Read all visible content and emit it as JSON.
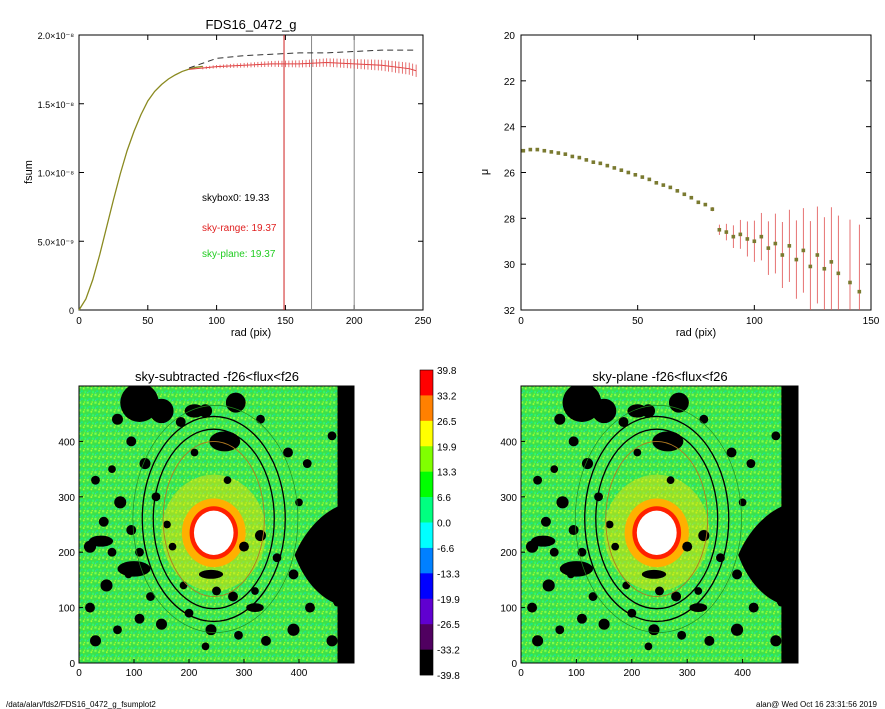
{
  "chart_data": [
    {
      "type": "line",
      "title": "FDS16_0472_g",
      "xlabel": "rad (pix)",
      "ylabel": "fsum",
      "xlim": [
        0,
        250
      ],
      "ylim": [
        0,
        2e-08
      ],
      "xticks": [
        "0",
        "50",
        "100",
        "150",
        "200",
        "250"
      ],
      "yticks": [
        "0",
        "5.0×10⁻⁹",
        "1.0×10⁻⁸",
        "1.5×10⁻⁸",
        "2.0×10⁻⁸"
      ],
      "ytick_values": [
        0,
        5e-09,
        1e-08,
        1.5e-08,
        2e-08
      ],
      "series": [
        {
          "style": "solid-olive",
          "x": [
            0,
            5,
            10,
            15,
            20,
            25,
            30,
            35,
            40,
            45,
            50,
            55,
            60,
            65,
            70,
            75,
            80,
            85,
            90
          ],
          "y": [
            0,
            8e-10,
            2.2e-09,
            4e-09,
            6e-09,
            8e-09,
            9.9e-09,
            1.16e-08,
            1.3e-08,
            1.42e-08,
            1.52e-08,
            1.59e-08,
            1.64e-08,
            1.68e-08,
            1.71e-08,
            1.735e-08,
            1.752e-08,
            1.765e-08,
            1.772e-08
          ]
        },
        {
          "style": "dashed-black",
          "x": [
            80,
            100,
            120,
            140,
            160,
            180,
            200,
            220,
            240,
            245
          ],
          "y": [
            1.76e-08,
            1.83e-08,
            1.85e-08,
            1.86e-08,
            1.87e-08,
            1.87e-08,
            1.88e-08,
            1.89e-08,
            1.89e-08,
            1.89e-08
          ]
        },
        {
          "style": "red-errorbars",
          "x": [
            80,
            100,
            120,
            140,
            160,
            180,
            200,
            220,
            240,
            245
          ],
          "y": [
            1.75e-08,
            1.77e-08,
            1.78e-08,
            1.79e-08,
            1.79e-08,
            1.8e-08,
            1.79e-08,
            1.78e-08,
            1.755e-08,
            1.74e-08
          ]
        }
      ],
      "vlines": [
        {
          "x": 149,
          "color": "#d02020"
        },
        {
          "x": 169,
          "color": "#888888"
        },
        {
          "x": 200,
          "color": "#888888"
        }
      ],
      "annotations": [
        {
          "text": "skybox0: 19.33",
          "color": "#000000"
        },
        {
          "text": "sky-range: 19.37",
          "color": "#e02020"
        },
        {
          "text": "sky-plane: 19.37",
          "color": "#22cc22"
        }
      ]
    },
    {
      "type": "scatter",
      "title": "",
      "xlabel": "rad (pix)",
      "ylabel": "μ",
      "xlim": [
        0,
        150
      ],
      "ylim": [
        32,
        20
      ],
      "xticks": [
        "0",
        "50",
        "100",
        "150"
      ],
      "yticks": [
        "20",
        "22",
        "24",
        "26",
        "28",
        "30",
        "32"
      ],
      "points": [
        [
          1,
          25.05
        ],
        [
          4,
          25.0
        ],
        [
          7,
          25.0
        ],
        [
          10,
          25.05
        ],
        [
          13,
          25.1
        ],
        [
          16,
          25.15
        ],
        [
          19,
          25.2
        ],
        [
          22,
          25.3
        ],
        [
          25,
          25.35
        ],
        [
          28,
          25.45
        ],
        [
          31,
          25.55
        ],
        [
          34,
          25.6
        ],
        [
          37,
          25.7
        ],
        [
          40,
          25.8
        ],
        [
          43,
          25.9
        ],
        [
          46,
          26.0
        ],
        [
          49,
          26.1
        ],
        [
          52,
          26.2
        ],
        [
          55,
          26.3
        ],
        [
          58,
          26.45
        ],
        [
          61,
          26.55
        ],
        [
          64,
          26.65
        ],
        [
          67,
          26.8
        ],
        [
          70,
          26.95
        ],
        [
          73,
          27.1
        ],
        [
          76,
          27.3
        ],
        [
          79,
          27.4
        ],
        [
          82,
          27.6
        ],
        [
          85,
          28.5
        ],
        [
          88,
          28.6
        ],
        [
          91,
          28.8
        ],
        [
          94,
          28.7
        ],
        [
          97,
          28.9
        ],
        [
          100,
          29.0
        ],
        [
          103,
          28.8
        ],
        [
          106,
          29.3
        ],
        [
          109,
          29.1
        ],
        [
          112,
          29.6
        ],
        [
          115,
          29.2
        ],
        [
          118,
          29.8
        ],
        [
          121,
          29.4
        ],
        [
          124,
          30.1
        ],
        [
          127,
          29.6
        ],
        [
          130,
          30.2
        ],
        [
          133,
          29.9
        ],
        [
          136,
          30.4
        ],
        [
          141,
          30.8
        ],
        [
          145,
          31.2
        ]
      ]
    },
    {
      "type": "heatmap",
      "title": "sky-subtracted -f26<flux<f26",
      "xlim": [
        0,
        500
      ],
      "ylim": [
        0,
        500
      ],
      "xticks": [
        "0",
        "100",
        "200",
        "300",
        "400"
      ],
      "yticks": [
        "0",
        "100",
        "200",
        "300",
        "400"
      ]
    },
    {
      "type": "heatmap",
      "title": "sky-plane -f26<flux<f26",
      "xlim": [
        0,
        500
      ],
      "ylim": [
        0,
        500
      ],
      "xticks": [
        "0",
        "100",
        "200",
        "300",
        "400"
      ],
      "yticks": [
        "0",
        "100",
        "200",
        "300",
        "400"
      ]
    }
  ],
  "colorbar": {
    "labels": [
      "39.8",
      "33.2",
      "26.5",
      "19.9",
      "13.3",
      "6.6",
      "0.0",
      "-6.6",
      "-13.3",
      "-19.9",
      "-26.5",
      "-33.2",
      "-39.8"
    ],
    "colors": [
      "#ff0000",
      "#ff8000",
      "#ffff00",
      "#80ff00",
      "#00ff00",
      "#00ff80",
      "#00ffff",
      "#0080ff",
      "#0000ff",
      "#6000d0",
      "#500060",
      "#000000"
    ]
  },
  "footer": {
    "path": "/data/alan/fds2/FDS16_0472_g_fsumplot2",
    "stamp": "alan@  Wed Oct 16 23:31:56 2019"
  }
}
